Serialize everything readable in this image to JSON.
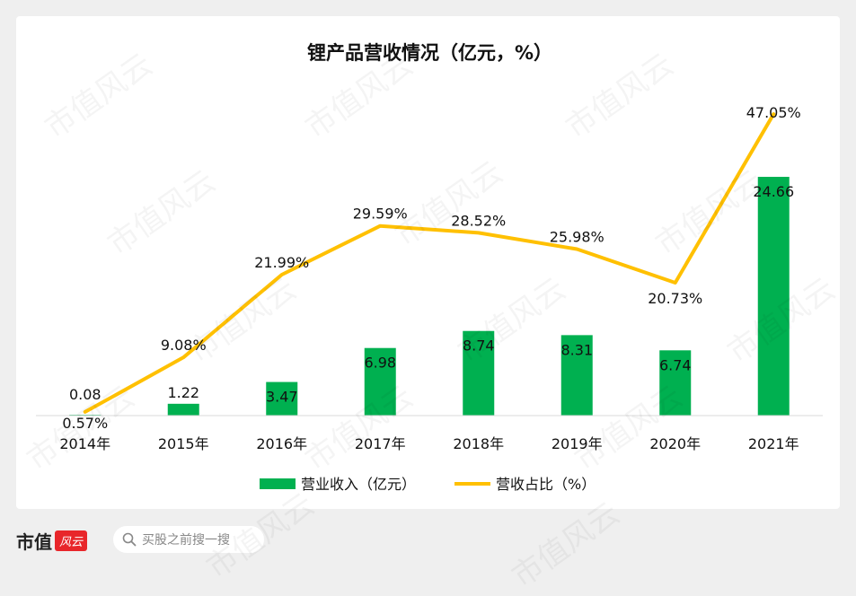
{
  "brand": {
    "name": "市值",
    "badge": "风云"
  },
  "search": {
    "placeholder": "买股之前搜一搜"
  },
  "watermark": {
    "text": "市值风云"
  },
  "chart_data": {
    "type": "bar+line",
    "title": "锂产品营收情况（亿元，%）",
    "categories": [
      "2014年",
      "2015年",
      "2016年",
      "2017年",
      "2018年",
      "2019年",
      "2020年",
      "2021年"
    ],
    "series": [
      {
        "name": "营业收入（亿元）",
        "type": "bar",
        "color": "#00b050",
        "values": [
          0.08,
          1.22,
          3.47,
          6.98,
          8.74,
          8.31,
          6.74,
          24.66
        ],
        "labels": [
          "0.08",
          "1.22",
          "3.47",
          "6.98",
          "8.74",
          "8.31",
          "6.74",
          "24.66"
        ]
      },
      {
        "name": "营收占比（%）",
        "type": "line",
        "color": "#ffc000",
        "values": [
          0.57,
          9.08,
          21.99,
          29.59,
          28.52,
          25.98,
          20.73,
          47.05
        ],
        "labels": [
          "0.57%",
          "9.08%",
          "21.99%",
          "29.59%",
          "28.52%",
          "25.98%",
          "20.73%",
          "47.05%"
        ]
      }
    ],
    "bar_axis_max": 28,
    "line_axis_max": 50,
    "legend_position": "bottom",
    "grid": false
  }
}
